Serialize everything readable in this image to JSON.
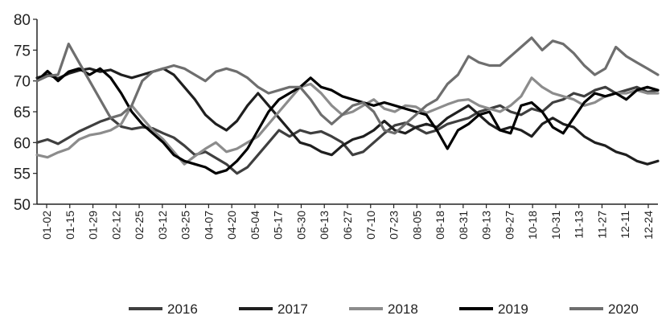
{
  "chart_data": {
    "type": "line",
    "title": "",
    "xlabel": "",
    "ylabel": "",
    "ylim": [
      50,
      80
    ],
    "yticks": [
      50,
      55,
      60,
      65,
      70,
      75,
      80
    ],
    "x_tick_labels": [
      "01-02",
      "01-15",
      "01-29",
      "02-12",
      "02-25",
      "03-12",
      "03-25",
      "04-07",
      "04-20",
      "05-04",
      "05-17",
      "05-30",
      "06-13",
      "06-27",
      "07-10",
      "07-23",
      "08-05",
      "08-18",
      "08-31",
      "09-13",
      "09-27",
      "10-18",
      "10-31",
      "11-13",
      "11-27",
      "12-11",
      "12-24"
    ],
    "grid": false,
    "legend_position": "bottom",
    "series": [
      {
        "name": "2016",
        "color": "#3f3f3f",
        "values": [
          [
            0,
            60.0
          ],
          [
            1,
            60.5
          ],
          [
            2,
            59.8
          ],
          [
            3,
            60.8
          ],
          [
            4,
            61.8
          ],
          [
            5,
            62.6
          ],
          [
            6,
            63.4
          ],
          [
            7,
            64.0
          ],
          [
            8,
            62.6
          ],
          [
            9,
            62.2
          ],
          [
            10,
            62.5
          ],
          [
            11,
            62.3
          ],
          [
            12,
            61.5
          ],
          [
            13,
            60.8
          ],
          [
            14,
            59.5
          ],
          [
            15,
            58.0
          ],
          [
            16,
            58.5
          ],
          [
            17,
            57.5
          ],
          [
            18,
            56.5
          ],
          [
            19,
            55.0
          ],
          [
            20,
            56.0
          ],
          [
            21,
            58.0
          ],
          [
            22,
            60.0
          ],
          [
            23,
            62.0
          ],
          [
            24,
            61.0
          ],
          [
            25,
            62.0
          ],
          [
            26,
            61.5
          ],
          [
            27,
            61.8
          ],
          [
            28,
            61.0
          ],
          [
            29,
            60.0
          ],
          [
            30,
            58.0
          ],
          [
            31,
            58.5
          ],
          [
            32,
            60.0
          ],
          [
            33,
            61.5
          ],
          [
            34,
            62.8
          ],
          [
            35,
            63.2
          ],
          [
            36,
            62.4
          ],
          [
            37,
            61.5
          ],
          [
            38,
            62.0
          ],
          [
            39,
            63.0
          ],
          [
            40,
            63.5
          ],
          [
            41,
            64.0
          ],
          [
            42,
            65.0
          ],
          [
            43,
            65.5
          ],
          [
            44,
            66.0
          ],
          [
            45,
            65.0
          ],
          [
            46,
            64.5
          ],
          [
            47,
            65.5
          ],
          [
            48,
            65.0
          ],
          [
            49,
            66.5
          ],
          [
            50,
            67.0
          ],
          [
            51,
            68.0
          ],
          [
            52,
            67.5
          ],
          [
            53,
            68.5
          ],
          [
            54,
            69.0
          ],
          [
            55,
            68.0
          ],
          [
            56,
            68.5
          ],
          [
            57,
            69.0
          ],
          [
            58,
            68.2
          ],
          [
            59,
            68.5
          ]
        ]
      },
      {
        "name": "2017",
        "color": "#1f1f1f",
        "values": [
          [
            0,
            70.5
          ],
          [
            1,
            71.0
          ],
          [
            2,
            70.4
          ],
          [
            3,
            71.2
          ],
          [
            4,
            71.7
          ],
          [
            5,
            72.0
          ],
          [
            6,
            71.5
          ],
          [
            7,
            71.8
          ],
          [
            8,
            71.0
          ],
          [
            9,
            70.5
          ],
          [
            10,
            71.0
          ],
          [
            11,
            71.5
          ],
          [
            12,
            72.0
          ],
          [
            13,
            71.0
          ],
          [
            14,
            69.0
          ],
          [
            15,
            67.0
          ],
          [
            16,
            64.5
          ],
          [
            17,
            63.0
          ],
          [
            18,
            62.0
          ],
          [
            19,
            63.5
          ],
          [
            20,
            66.0
          ],
          [
            21,
            68.0
          ],
          [
            22,
            66.0
          ],
          [
            23,
            64.0
          ],
          [
            24,
            62.0
          ],
          [
            25,
            60.0
          ],
          [
            26,
            59.5
          ],
          [
            27,
            58.5
          ],
          [
            28,
            58.0
          ],
          [
            29,
            59.5
          ],
          [
            30,
            60.5
          ],
          [
            31,
            61.0
          ],
          [
            32,
            62.0
          ],
          [
            33,
            63.5
          ],
          [
            34,
            62.0
          ],
          [
            35,
            61.5
          ],
          [
            36,
            62.5
          ],
          [
            37,
            63.0
          ],
          [
            38,
            62.5
          ],
          [
            39,
            64.0
          ],
          [
            40,
            65.0
          ],
          [
            41,
            66.0
          ],
          [
            42,
            64.5
          ],
          [
            43,
            63.0
          ],
          [
            44,
            62.0
          ],
          [
            45,
            62.5
          ],
          [
            46,
            62.0
          ],
          [
            47,
            61.0
          ],
          [
            48,
            63.0
          ],
          [
            49,
            64.0
          ],
          [
            50,
            63.0
          ],
          [
            51,
            62.5
          ],
          [
            52,
            61.0
          ],
          [
            53,
            60.0
          ],
          [
            54,
            59.5
          ],
          [
            55,
            58.5
          ],
          [
            56,
            58.0
          ],
          [
            57,
            57.0
          ],
          [
            58,
            56.5
          ],
          [
            59,
            57.0
          ]
        ]
      },
      {
        "name": "2018",
        "color": "#8c8c8c",
        "values": [
          [
            0,
            58.0
          ],
          [
            1,
            57.6
          ],
          [
            2,
            58.4
          ],
          [
            3,
            59.0
          ],
          [
            4,
            60.5
          ],
          [
            5,
            61.2
          ],
          [
            6,
            61.5
          ],
          [
            7,
            62.0
          ],
          [
            8,
            63.0
          ],
          [
            9,
            66.0
          ],
          [
            10,
            64.0
          ],
          [
            11,
            62.0
          ],
          [
            12,
            60.5
          ],
          [
            13,
            58.5
          ],
          [
            14,
            56.5
          ],
          [
            15,
            57.8
          ],
          [
            16,
            59.0
          ],
          [
            17,
            60.0
          ],
          [
            18,
            58.5
          ],
          [
            19,
            59.0
          ],
          [
            20,
            60.0
          ],
          [
            21,
            61.0
          ],
          [
            22,
            63.0
          ],
          [
            23,
            65.0
          ],
          [
            24,
            67.0
          ],
          [
            25,
            69.0
          ],
          [
            26,
            69.5
          ],
          [
            27,
            68.0
          ],
          [
            28,
            66.0
          ],
          [
            29,
            64.5
          ],
          [
            30,
            65.0
          ],
          [
            31,
            66.0
          ],
          [
            32,
            67.0
          ],
          [
            33,
            65.5
          ],
          [
            34,
            65.0
          ],
          [
            35,
            66.0
          ],
          [
            36,
            65.8
          ],
          [
            37,
            64.8
          ],
          [
            38,
            65.5
          ],
          [
            39,
            66.2
          ],
          [
            40,
            66.8
          ],
          [
            41,
            67.0
          ],
          [
            42,
            66.0
          ],
          [
            43,
            65.5
          ],
          [
            44,
            65.0
          ],
          [
            45,
            66.0
          ],
          [
            46,
            67.5
          ],
          [
            47,
            70.5
          ],
          [
            48,
            69.0
          ],
          [
            49,
            68.0
          ],
          [
            50,
            67.5
          ],
          [
            51,
            67.0
          ],
          [
            52,
            66.0
          ],
          [
            53,
            66.5
          ],
          [
            54,
            67.5
          ],
          [
            55,
            68.0
          ],
          [
            56,
            68.0
          ],
          [
            57,
            68.5
          ],
          [
            58,
            68.0
          ],
          [
            59,
            68.0
          ]
        ]
      },
      {
        "name": "2019",
        "color": "#000000",
        "values": [
          [
            0,
            70.0
          ],
          [
            1,
            71.6
          ],
          [
            2,
            70.0
          ],
          [
            3,
            71.5
          ],
          [
            4,
            72.0
          ],
          [
            5,
            71.0
          ],
          [
            6,
            72.0
          ],
          [
            7,
            70.5
          ],
          [
            8,
            68.0
          ],
          [
            9,
            65.0
          ],
          [
            10,
            63.0
          ],
          [
            11,
            61.5
          ],
          [
            12,
            60.0
          ],
          [
            13,
            58.0
          ],
          [
            14,
            57.0
          ],
          [
            15,
            56.5
          ],
          [
            16,
            56.0
          ],
          [
            17,
            55.0
          ],
          [
            18,
            55.5
          ],
          [
            19,
            57.0
          ],
          [
            20,
            59.0
          ],
          [
            21,
            62.0
          ],
          [
            22,
            65.0
          ],
          [
            23,
            67.0
          ],
          [
            24,
            68.0
          ],
          [
            25,
            69.0
          ],
          [
            26,
            70.5
          ],
          [
            27,
            69.0
          ],
          [
            28,
            68.5
          ],
          [
            29,
            67.5
          ],
          [
            30,
            67.0
          ],
          [
            31,
            66.5
          ],
          [
            32,
            66.0
          ],
          [
            33,
            66.5
          ],
          [
            34,
            66.0
          ],
          [
            35,
            65.5
          ],
          [
            36,
            65.0
          ],
          [
            37,
            64.5
          ],
          [
            38,
            62.0
          ],
          [
            39,
            59.0
          ],
          [
            40,
            62.0
          ],
          [
            41,
            63.0
          ],
          [
            42,
            64.5
          ],
          [
            43,
            65.0
          ],
          [
            44,
            62.0
          ],
          [
            45,
            61.5
          ],
          [
            46,
            66.0
          ],
          [
            47,
            66.5
          ],
          [
            48,
            65.0
          ],
          [
            49,
            62.5
          ],
          [
            50,
            61.5
          ],
          [
            51,
            64.0
          ],
          [
            52,
            66.5
          ],
          [
            53,
            68.0
          ],
          [
            54,
            67.5
          ],
          [
            55,
            68.0
          ],
          [
            56,
            67.0
          ],
          [
            57,
            68.5
          ],
          [
            58,
            69.0
          ],
          [
            59,
            68.5
          ]
        ]
      },
      {
        "name": "2020",
        "color": "#6e6e6e",
        "values": [
          [
            0,
            70.0
          ],
          [
            1,
            70.8
          ],
          [
            2,
            71.0
          ],
          [
            3,
            76.0
          ],
          [
            4,
            73.0
          ],
          [
            5,
            70.0
          ],
          [
            6,
            67.0
          ],
          [
            7,
            64.0
          ],
          [
            8,
            64.5
          ],
          [
            9,
            66.0
          ],
          [
            10,
            70.0
          ],
          [
            11,
            71.5
          ],
          [
            12,
            72.0
          ],
          [
            13,
            72.5
          ],
          [
            14,
            72.0
          ],
          [
            15,
            71.0
          ],
          [
            16,
            70.0
          ],
          [
            17,
            71.5
          ],
          [
            18,
            72.0
          ],
          [
            19,
            71.5
          ],
          [
            20,
            70.5
          ],
          [
            21,
            69.0
          ],
          [
            22,
            68.0
          ],
          [
            23,
            68.5
          ],
          [
            24,
            69.0
          ],
          [
            25,
            69.0
          ],
          [
            26,
            67.0
          ],
          [
            27,
            64.5
          ],
          [
            28,
            63.0
          ],
          [
            29,
            64.5
          ],
          [
            30,
            66.0
          ],
          [
            31,
            66.5
          ],
          [
            32,
            65.0
          ],
          [
            33,
            62.0
          ],
          [
            34,
            61.5
          ],
          [
            35,
            63.0
          ],
          [
            36,
            64.5
          ],
          [
            37,
            66.0
          ],
          [
            38,
            67.0
          ],
          [
            39,
            69.5
          ],
          [
            40,
            71.0
          ],
          [
            41,
            74.0
          ],
          [
            42,
            73.0
          ],
          [
            43,
            72.5
          ],
          [
            44,
            72.5
          ],
          [
            45,
            74.0
          ],
          [
            46,
            75.5
          ],
          [
            47,
            77.0
          ],
          [
            48,
            75.0
          ],
          [
            49,
            76.5
          ],
          [
            50,
            76.0
          ],
          [
            51,
            74.5
          ],
          [
            52,
            72.5
          ],
          [
            53,
            71.0
          ],
          [
            54,
            72.0
          ],
          [
            55,
            75.5
          ],
          [
            56,
            74.0
          ],
          [
            57,
            73.0
          ],
          [
            58,
            72.0
          ],
          [
            59,
            71.0
          ]
        ]
      }
    ]
  }
}
